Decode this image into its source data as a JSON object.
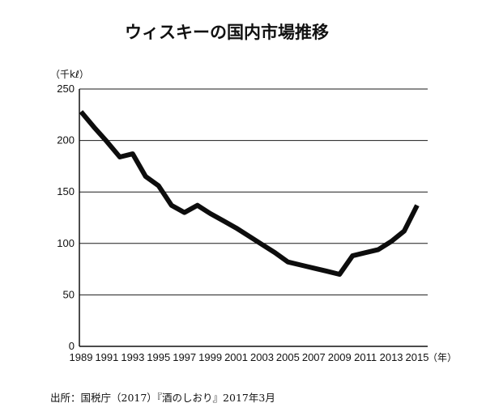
{
  "chart_data": {
    "type": "line",
    "title": "ウィスキーの国内市場推移",
    "ylabel": "（千kℓ）",
    "xlabel": "（年）",
    "source": "出所：国税庁（2017）『酒のしおり』2017年3月",
    "ylim": [
      0,
      250
    ],
    "yticks": [
      0,
      50,
      100,
      150,
      200,
      250
    ],
    "xticks": [
      1989,
      1991,
      1993,
      1995,
      1997,
      1999,
      2001,
      2003,
      2005,
      2007,
      2009,
      2011,
      2013,
      2015
    ],
    "xlim": [
      1989,
      2015
    ],
    "grid": true,
    "series": [
      {
        "x": [
          1989,
          1990,
          1991,
          1992,
          1993,
          1994,
          1995,
          1996,
          1997,
          1998,
          1999,
          2000,
          2001,
          2002,
          2003,
          2004,
          2005,
          2006,
          2007,
          2008,
          2009,
          2010,
          2011,
          2012,
          2013,
          2014,
          2015
        ],
        "values": [
          228,
          213,
          199,
          184,
          187,
          165,
          156,
          137,
          130,
          137,
          129,
          122,
          115,
          107,
          99,
          91,
          82,
          79,
          76,
          73,
          70,
          88,
          91,
          94,
          102,
          112,
          137
        ]
      }
    ]
  }
}
